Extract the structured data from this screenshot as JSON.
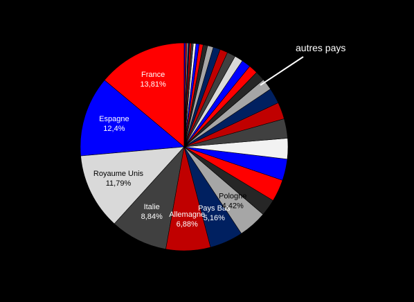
{
  "chart_data": {
    "type": "pie",
    "title": "",
    "start": "12 o'clock",
    "direction": "counterclockwise",
    "slices": [
      {
        "label": "France",
        "value": 13.81,
        "display": "13,81%",
        "color": "#ff0000",
        "text_color": "#ffffff"
      },
      {
        "label": "Espagne",
        "value": 12.4,
        "display": "12,4%",
        "color": "#0000ff",
        "text_color": "#ffffff"
      },
      {
        "label": "Royaume Unis",
        "value": 11.79,
        "display": "11,79%",
        "color": "#d9d9d9",
        "text_color": "#000000"
      },
      {
        "label": "Italie",
        "value": 8.84,
        "display": "8,84%",
        "color": "#404040",
        "text_color": "#ffffff"
      },
      {
        "label": "Allemagne",
        "value": 6.88,
        "display": "6,88%",
        "color": "#c00000",
        "text_color": "#ffffff"
      },
      {
        "label": "Pays Bas",
        "value": 5.16,
        "display": "5,16%",
        "color": "#002060",
        "text_color": "#ffffff"
      },
      {
        "label": "Pologne",
        "value": 4.42,
        "display": "4,42%",
        "color": "#a6a6a6",
        "text_color": "#000000"
      },
      {
        "label": "",
        "value": 2.6,
        "color": "#262626"
      },
      {
        "label": "",
        "value": 3.4,
        "color": "#ff0000"
      },
      {
        "label": "",
        "value": 3.3,
        "color": "#0000ff"
      },
      {
        "label": "",
        "value": 3.2,
        "color": "#f2f2f2"
      },
      {
        "label": "",
        "value": 3.0,
        "color": "#404040"
      },
      {
        "label": "",
        "value": 2.6,
        "color": "#c00000"
      },
      {
        "label": "",
        "value": 2.4,
        "color": "#002060"
      },
      {
        "label": "",
        "value": 1.8,
        "color": "#a6a6a6"
      },
      {
        "label": "",
        "value": 1.5,
        "color": "#262626"
      },
      {
        "label": "",
        "value": 1.4,
        "color": "#ff0000"
      },
      {
        "label": "",
        "value": 1.4,
        "color": "#0000ff"
      },
      {
        "label": "",
        "value": 1.3,
        "color": "#d9d9d9"
      },
      {
        "label": "",
        "value": 1.3,
        "color": "#404040"
      },
      {
        "label": "",
        "value": 1.2,
        "color": "#c00000"
      },
      {
        "label": "",
        "value": 1.1,
        "color": "#002060"
      },
      {
        "label": "",
        "value": 0.9,
        "color": "#a6a6a6"
      },
      {
        "label": "",
        "value": 0.7,
        "color": "#262626"
      },
      {
        "label": "",
        "value": 0.6,
        "color": "#ff0000"
      },
      {
        "label": "",
        "value": 0.5,
        "color": "#0000ff"
      },
      {
        "label": "",
        "value": 0.4,
        "color": "#f2f2f2"
      },
      {
        "label": "",
        "value": 0.3,
        "color": "#404040"
      },
      {
        "label": "",
        "value": 0.3,
        "color": "#c00000"
      },
      {
        "label": "",
        "value": 0.2,
        "color": "#002060"
      },
      {
        "label": "",
        "value": 0.2,
        "color": "#a6a6a6"
      },
      {
        "label": "",
        "value": 0.2,
        "color": "#ff0000"
      },
      {
        "label": "",
        "value": 0.2,
        "color": "#0000ff"
      }
    ],
    "annotation": {
      "text": "autres pays",
      "color": "#ffffff"
    },
    "legend": "none",
    "background": "#000000"
  }
}
